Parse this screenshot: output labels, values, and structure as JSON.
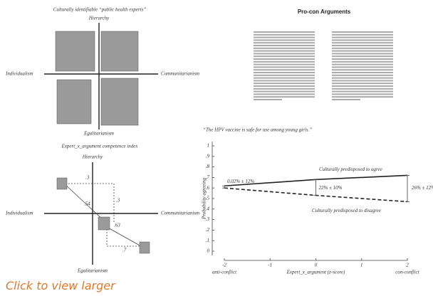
{
  "experts_panel": {
    "title": "Culturally identifiable “public health experts”",
    "top": "Hierarchy",
    "left": "Individualism",
    "right": "Communitarianism",
    "bottom": "Egalitarianism"
  },
  "procon_panel": {
    "title": "Pro-con Arguments"
  },
  "competence_panel": {
    "title": "Expert_x_argument competence index",
    "top": "Hierarchy",
    "left": "Individualism",
    "right": "Communitarianism",
    "bottom": "Egalitarianism",
    "labels": [
      ".3",
      ".54",
      ".3",
      ".63",
      ".7"
    ]
  },
  "chart_data": {
    "type": "line",
    "title": "“The HPV vaccine is safe for use among young girls.”",
    "y_label": "Probability agreeing",
    "x_label": "Expert_x_argument (z-score)",
    "x_left_label": "anti-conflict",
    "x_right_label": "con-conflict",
    "x": [
      -2,
      0,
      2
    ],
    "xlim": [
      -2,
      2
    ],
    "xticks": [
      -2,
      -1,
      0,
      1,
      2
    ],
    "ylim": [
      0,
      1
    ],
    "yticks": [
      0,
      {
        "value": 0.1,
        "label": ".1"
      },
      {
        "value": 0.2,
        "label": ".2"
      },
      {
        "value": 0.3,
        "label": ".3"
      },
      {
        "value": 0.4,
        "label": ".4"
      },
      {
        "value": 0.5,
        "label": ".5"
      },
      {
        "value": 0.6,
        "label": ".6"
      },
      {
        "value": 0.7,
        "label": ".7"
      },
      {
        "value": 0.8,
        "label": ".8"
      },
      {
        "value": 0.9,
        "label": ".9"
      },
      1
    ],
    "series": [
      {
        "name": "Culturally predisposed to agree",
        "color": "#222222",
        "dash": false,
        "values": [
          0.62,
          0.68,
          0.72
        ]
      },
      {
        "name": "Culturally predisposed to disagree",
        "color": "#222222",
        "dash": true,
        "values": [
          0.6,
          0.53,
          0.47
        ]
      }
    ],
    "annotations": [
      "0.02% ± 12%",
      "22% ± 10%",
      "26% ± 12%"
    ]
  },
  "link": "Click to view larger"
}
